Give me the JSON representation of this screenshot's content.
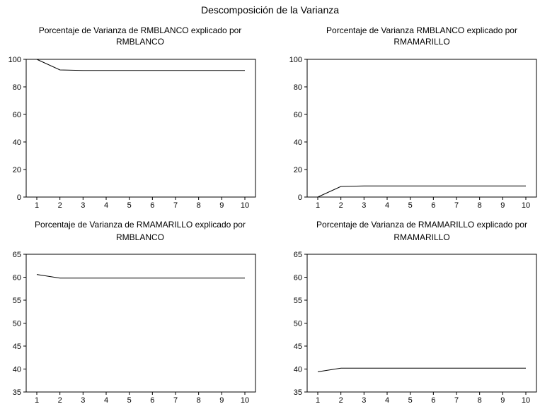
{
  "title": "Descomposición de la Varianza",
  "chart_data": [
    {
      "type": "line",
      "title_lines": [
        "Porcentaje de Varianza de RMBLANCO explicado por",
        "RMBLANCO"
      ],
      "x": [
        1,
        2,
        3,
        4,
        5,
        6,
        7,
        8,
        9,
        10
      ],
      "y": [
        100,
        92.3,
        91.9,
        91.9,
        91.9,
        91.9,
        91.9,
        91.9,
        91.9,
        91.9
      ],
      "ylim": [
        0,
        100
      ],
      "yticks": [
        0,
        20,
        40,
        60,
        80,
        100
      ]
    },
    {
      "type": "line",
      "title_lines": [
        "Porcentaje de Varianza RMBLANCO explicado por",
        "RMAMARILLO"
      ],
      "x": [
        1,
        2,
        3,
        4,
        5,
        6,
        7,
        8,
        9,
        10
      ],
      "y": [
        0,
        7.7,
        8.1,
        8.1,
        8.1,
        8.1,
        8.1,
        8.1,
        8.1,
        8.1
      ],
      "ylim": [
        0,
        100
      ],
      "yticks": [
        0,
        20,
        40,
        60,
        80,
        100
      ]
    },
    {
      "type": "line",
      "title_lines": [
        "Porcentaje de Varianza de RMAMARILLO explicado por",
        "RMBLANCO"
      ],
      "x": [
        1,
        2,
        3,
        4,
        5,
        6,
        7,
        8,
        9,
        10
      ],
      "y": [
        60.6,
        59.8,
        59.8,
        59.8,
        59.8,
        59.8,
        59.8,
        59.8,
        59.8,
        59.8
      ],
      "ylim": [
        35,
        65
      ],
      "yticks": [
        35,
        40,
        45,
        50,
        55,
        60,
        65
      ]
    },
    {
      "type": "line",
      "title_lines": [
        "Porcentaje de Varianza de  RMAMARILLO explicado por",
        "RMAMARILLO"
      ],
      "x": [
        1,
        2,
        3,
        4,
        5,
        6,
        7,
        8,
        9,
        10
      ],
      "y": [
        39.4,
        40.2,
        40.2,
        40.2,
        40.2,
        40.2,
        40.2,
        40.2,
        40.2,
        40.2
      ],
      "ylim": [
        35,
        65
      ],
      "yticks": [
        35,
        40,
        45,
        50,
        55,
        60,
        65
      ]
    }
  ]
}
